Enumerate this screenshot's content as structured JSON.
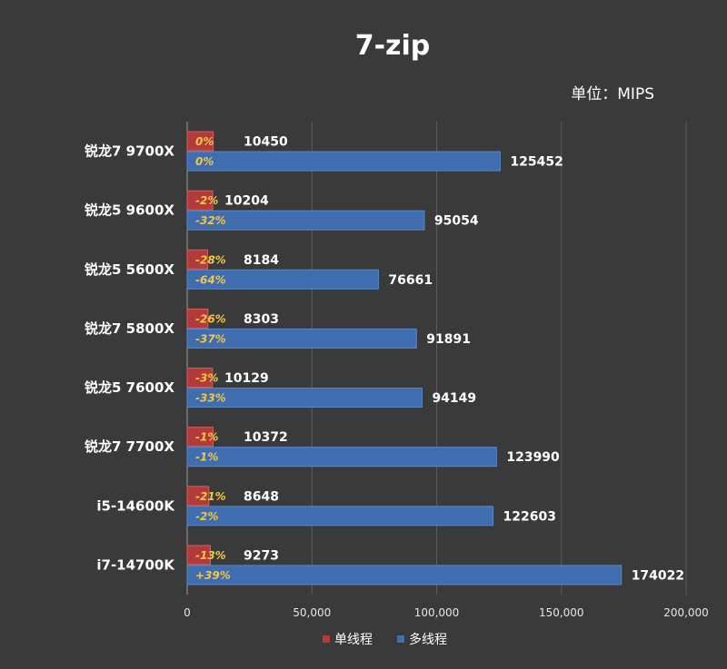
{
  "chart_data": {
    "type": "bar",
    "orientation": "horizontal",
    "title": "7-zip",
    "unit_label": "单位：MIPS",
    "categories": [
      "锐龙7 9700X",
      "锐龙5 9600X",
      "锐龙5 5600X",
      "锐龙7 5800X",
      "锐龙5 7600X",
      "锐龙7 7700X",
      "i5-14600K",
      "i7-14700K"
    ],
    "series": [
      {
        "name": "单线程",
        "color": "#b23a3a",
        "values": [
          10450,
          10204,
          8184,
          8303,
          10129,
          10372,
          8648,
          9273
        ],
        "value_labels": [
          "10450",
          "10204",
          "8184",
          "8303",
          "10129",
          "10372",
          "8648",
          "9273"
        ],
        "pct_labels": [
          "0%",
          "-2%",
          "-28%",
          "-26%",
          "-3%",
          "-1%",
          "-21%",
          "-13%"
        ]
      },
      {
        "name": "多线程",
        "color": "#3f6db0",
        "values": [
          125452,
          95054,
          76661,
          91891,
          94149,
          123990,
          122603,
          174022
        ],
        "value_labels": [
          "125452",
          "95054",
          "76661",
          "91891",
          "94149",
          "123990",
          "122603",
          "174022"
        ],
        "pct_labels": [
          "0%",
          "-32%",
          "-64%",
          "-37%",
          "-33%",
          "-1%",
          "-2%",
          "+39%"
        ]
      }
    ],
    "xlim": [
      0,
      200000
    ],
    "xticks": [
      0,
      50000,
      100000,
      150000,
      200000
    ],
    "xtick_labels": [
      "0",
      "50,000",
      "100,000",
      "150,000",
      "200,000"
    ],
    "grid": true,
    "legend_position": "bottom"
  }
}
